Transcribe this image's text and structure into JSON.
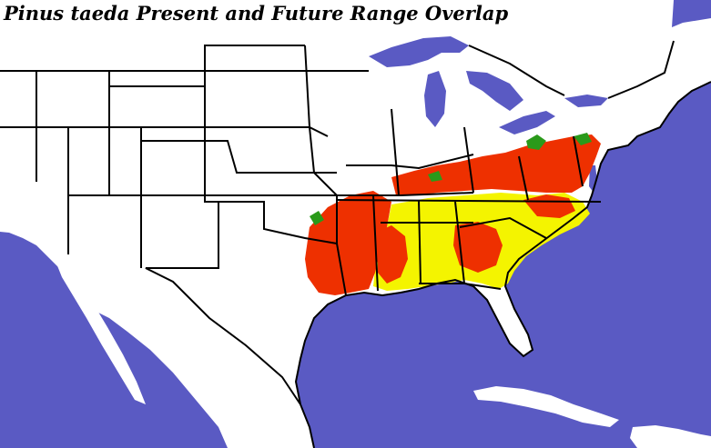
{
  "map": {
    "title": "Pinus taeda Present and Future Range Overlap",
    "colors": {
      "water": "#5a5ac3",
      "land": "#ffffff",
      "borders": "#000000",
      "present_and_future": "#f4f400",
      "present_only": "#ee3000",
      "future_only": "#2a9a1a"
    }
  }
}
